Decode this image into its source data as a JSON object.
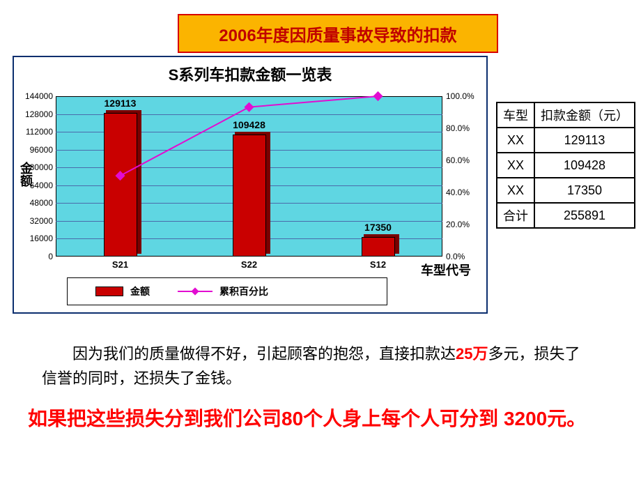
{
  "title_box": {
    "text": "2006年度因质量事故导致的扣款",
    "bg_color": "#fbb400",
    "border_color": "#d80000",
    "text_color": "#c00000"
  },
  "chart": {
    "title": "S系列车扣款金额一览表",
    "panel_border": "#0b2e6e",
    "plot_bg": "#5fd6e2",
    "grid_color": "#4a6aaa",
    "y_axis_label": "金额",
    "x_axis_label": "车型代号",
    "y_min": 0,
    "y_max": 144000,
    "y_step": 16000,
    "y2_min": 0,
    "y2_max": 100,
    "y2_step": 20,
    "y2_suffix": "%",
    "categories": [
      "S21",
      "S22",
      "S12"
    ],
    "bar_values": [
      129113,
      109428,
      17350
    ],
    "bar_labels": [
      "129113",
      "109428",
      "17350"
    ],
    "bar_color": "#c90000",
    "bar_shadow_color": "#7a0000",
    "line_pct": [
      50.4,
      93.2,
      100.0
    ],
    "line_color": "#e20cd1",
    "marker_color": "#e20cd1",
    "legend": {
      "bar_label": "金额",
      "line_label": "累积百分比"
    }
  },
  "table": {
    "headers": [
      "车型",
      "扣款金额（元）"
    ],
    "rows": [
      [
        "XX",
        "129113"
      ],
      [
        "XX",
        "109428"
      ],
      [
        "XX",
        "17350"
      ],
      [
        "合计",
        "255891"
      ]
    ]
  },
  "paragraph1": {
    "pre": "因为我们的质量做得不好，引起顾客的抱怨，直接扣款达",
    "highlight": "25万",
    "post": "多元，损失了信誉的同时，还损失了金钱。"
  },
  "paragraph2": {
    "p1": "如果把这些损失分到我们公司",
    "n1": "80",
    "p2": "个人身上每个人可分到 ",
    "n2": "3200",
    "p3": "元。"
  }
}
